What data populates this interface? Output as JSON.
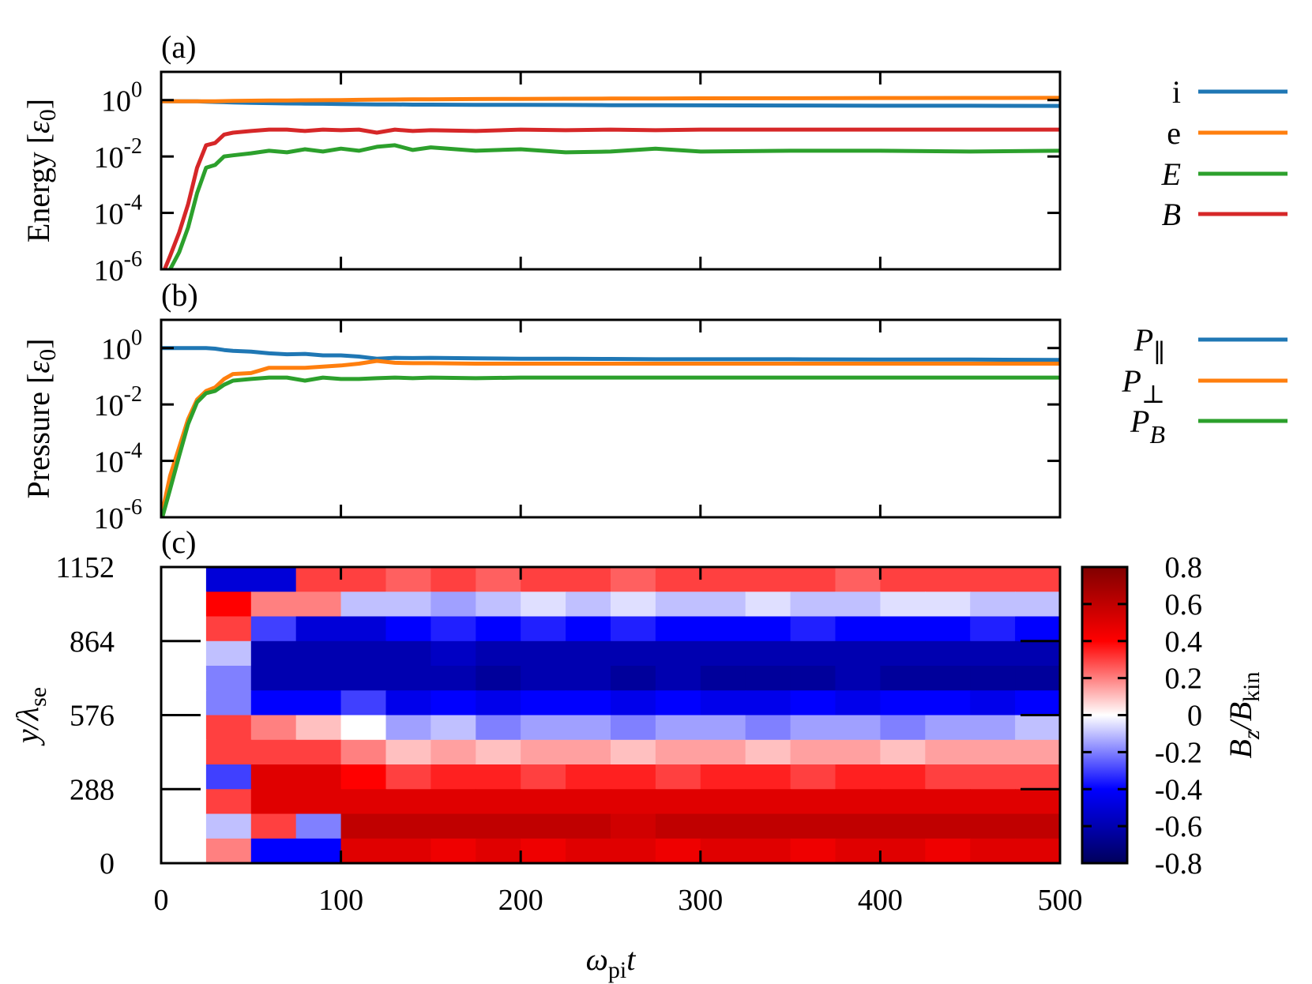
{
  "chart_data": [
    {
      "panel": "(a)",
      "type": "line",
      "ylabel": "Energy [ε0]",
      "yscale": "log",
      "ylim": [
        1e-06,
        10
      ],
      "xlim": [
        0,
        500
      ],
      "ytick_labels": [
        {
          "base": "10",
          "exp": "0",
          "value": 1
        },
        {
          "base": "10",
          "exp": "-2",
          "value": 0.01
        },
        {
          "base": "10",
          "exp": "-4",
          "value": 0.0001
        },
        {
          "base": "10",
          "exp": "-6",
          "value": 1e-06
        }
      ],
      "legend_position": "right",
      "x": [
        0,
        5,
        10,
        15,
        20,
        25,
        30,
        35,
        40,
        50,
        60,
        70,
        80,
        90,
        100,
        110,
        120,
        130,
        140,
        150,
        175,
        200,
        225,
        250,
        275,
        300,
        350,
        400,
        450,
        500
      ],
      "series": [
        {
          "name": "i",
          "color": "#1f77b4",
          "values": [
            0.9,
            0.9,
            0.9,
            0.9,
            0.9,
            0.88,
            0.86,
            0.84,
            0.82,
            0.8,
            0.78,
            0.76,
            0.75,
            0.74,
            0.72,
            0.71,
            0.7,
            0.7,
            0.69,
            0.69,
            0.68,
            0.68,
            0.67,
            0.66,
            0.66,
            0.65,
            0.64,
            0.63,
            0.63,
            0.62
          ]
        },
        {
          "name": "e",
          "color": "#ff7f0e",
          "values": [
            0.9,
            0.9,
            0.9,
            0.9,
            0.9,
            0.9,
            0.91,
            0.92,
            0.93,
            0.95,
            0.96,
            0.97,
            0.98,
            0.99,
            1.0,
            1.02,
            1.04,
            1.05,
            1.06,
            1.07,
            1.09,
            1.1,
            1.12,
            1.13,
            1.14,
            1.15,
            1.16,
            1.18,
            1.19,
            1.2
          ]
        },
        {
          "name": "E",
          "color": "#2ca02c",
          "values": [
            3e-07,
            1e-06,
            4e-06,
            3e-05,
            0.0005,
            0.004,
            0.005,
            0.01,
            0.011,
            0.013,
            0.016,
            0.014,
            0.018,
            0.015,
            0.019,
            0.016,
            0.022,
            0.025,
            0.017,
            0.021,
            0.016,
            0.018,
            0.014,
            0.015,
            0.019,
            0.015,
            0.016,
            0.016,
            0.015,
            0.016
          ]
        },
        {
          "name": "B",
          "color": "#d62728",
          "values": [
            5e-07,
            3e-06,
            2e-05,
            0.0002,
            0.004,
            0.025,
            0.03,
            0.06,
            0.07,
            0.08,
            0.09,
            0.09,
            0.08,
            0.09,
            0.085,
            0.09,
            0.07,
            0.09,
            0.08,
            0.085,
            0.08,
            0.09,
            0.085,
            0.09,
            0.085,
            0.09,
            0.09,
            0.09,
            0.09,
            0.09
          ]
        }
      ]
    },
    {
      "panel": "(b)",
      "type": "line",
      "ylabel": "Pressure [ε0]",
      "yscale": "log",
      "ylim": [
        1e-06,
        10
      ],
      "xlim": [
        0,
        500
      ],
      "ytick_labels": [
        {
          "base": "10",
          "exp": "0",
          "value": 1
        },
        {
          "base": "10",
          "exp": "-2",
          "value": 0.01
        },
        {
          "base": "10",
          "exp": "-4",
          "value": 0.0001
        },
        {
          "base": "10",
          "exp": "-6",
          "value": 1e-06
        }
      ],
      "legend_position": "right",
      "x": [
        0,
        5,
        10,
        15,
        20,
        25,
        30,
        35,
        40,
        50,
        60,
        70,
        80,
        90,
        100,
        110,
        120,
        130,
        140,
        150,
        175,
        200,
        225,
        250,
        275,
        300,
        350,
        400,
        450,
        500
      ],
      "series": [
        {
          "name": "P",
          "sub": "∥",
          "color": "#1f77b4",
          "values": [
            1,
            1,
            1,
            1,
            1,
            1,
            0.95,
            0.85,
            0.8,
            0.75,
            0.65,
            0.6,
            0.62,
            0.55,
            0.55,
            0.5,
            0.42,
            0.45,
            0.44,
            0.45,
            0.43,
            0.42,
            0.42,
            0.41,
            0.4,
            0.4,
            0.4,
            0.39,
            0.39,
            0.38
          ]
        },
        {
          "name": "P",
          "sub": "⊥",
          "color": "#ff7f0e",
          "values": [
            1e-06,
            3e-05,
            0.0003,
            0.003,
            0.015,
            0.03,
            0.04,
            0.08,
            0.12,
            0.13,
            0.2,
            0.2,
            0.2,
            0.22,
            0.24,
            0.28,
            0.35,
            0.3,
            0.29,
            0.29,
            0.28,
            0.28,
            0.28,
            0.28,
            0.28,
            0.28,
            0.28,
            0.28,
            0.28,
            0.28
          ]
        },
        {
          "name": "P",
          "sub": "B",
          "color": "#2ca02c",
          "values": [
            7e-07,
            1e-05,
            0.00015,
            0.002,
            0.012,
            0.025,
            0.03,
            0.05,
            0.07,
            0.08,
            0.09,
            0.09,
            0.07,
            0.09,
            0.08,
            0.08,
            0.085,
            0.09,
            0.085,
            0.09,
            0.085,
            0.09,
            0.09,
            0.09,
            0.09,
            0.09,
            0.09,
            0.09,
            0.09,
            0.09
          ]
        }
      ]
    },
    {
      "panel": "(c)",
      "type": "heatmap",
      "xlabel": "ωpit",
      "xlabel_parts": {
        "main": "ω",
        "sub": "pi",
        "tail": "t"
      },
      "ylabel_parts": {
        "main": "y/λ",
        "sub": "se"
      },
      "xlim": [
        0,
        500
      ],
      "ylim": [
        0,
        1152
      ],
      "xtick_labels": [
        "0",
        "100",
        "200",
        "300",
        "400",
        "500"
      ],
      "ytick_labels": [
        "1152",
        "864",
        "576",
        "288",
        "0"
      ],
      "colorbar": {
        "label_parts": {
          "a": "B",
          "asub": "z",
          "b": "/B",
          "bsub": "kin"
        },
        "range": [
          -0.8,
          0.8
        ],
        "tick_labels": [
          "0.8",
          "0.6",
          "0.4",
          "0.2",
          "0",
          "-0.2",
          "-0.4",
          "-0.6",
          "-0.8"
        ],
        "colors": [
          "#00005a",
          "#0000b0",
          "#0000ff",
          "#8080ff",
          "#ffffff",
          "#ff8080",
          "#ff0000",
          "#c00000",
          "#800000"
        ]
      },
      "x_centers": [
        12.5,
        37.5,
        62.5,
        87.5,
        112.5,
        137.5,
        162.5,
        187.5,
        212.5,
        237.5,
        262.5,
        287.5,
        312.5,
        337.5,
        362.5,
        387.5,
        412.5,
        437.5,
        462.5,
        487.5
      ],
      "y_centers_top_to_bottom": [
        1104,
        1008,
        912,
        816,
        720,
        624,
        528,
        432,
        336,
        240,
        144,
        48
      ],
      "values": [
        [
          0.0,
          -0.5,
          -0.5,
          0.3,
          0.3,
          0.25,
          0.3,
          0.25,
          0.3,
          0.3,
          0.25,
          0.3,
          0.3,
          0.3,
          0.3,
          0.25,
          0.3,
          0.3,
          0.3,
          0.3
        ],
        [
          0.0,
          0.4,
          0.2,
          0.2,
          -0.1,
          -0.1,
          -0.15,
          -0.1,
          -0.05,
          -0.1,
          -0.05,
          -0.1,
          -0.1,
          -0.05,
          -0.1,
          -0.1,
          -0.05,
          -0.05,
          -0.1,
          -0.1
        ],
        [
          0.0,
          0.3,
          -0.3,
          -0.5,
          -0.5,
          -0.4,
          -0.35,
          -0.4,
          -0.35,
          -0.4,
          -0.35,
          -0.4,
          -0.4,
          -0.4,
          -0.35,
          -0.4,
          -0.4,
          -0.4,
          -0.35,
          -0.4
        ],
        [
          0.0,
          -0.1,
          -0.6,
          -0.6,
          -0.6,
          -0.6,
          -0.55,
          -0.6,
          -0.6,
          -0.6,
          -0.6,
          -0.6,
          -0.6,
          -0.6,
          -0.6,
          -0.6,
          -0.6,
          -0.6,
          -0.6,
          -0.6
        ],
        [
          0.0,
          -0.2,
          -0.6,
          -0.6,
          -0.6,
          -0.6,
          -0.6,
          -0.65,
          -0.6,
          -0.6,
          -0.65,
          -0.6,
          -0.65,
          -0.65,
          -0.65,
          -0.6,
          -0.65,
          -0.65,
          -0.65,
          -0.65
        ],
        [
          0.0,
          -0.2,
          -0.4,
          -0.4,
          -0.3,
          -0.45,
          -0.4,
          -0.45,
          -0.4,
          -0.4,
          -0.45,
          -0.4,
          -0.45,
          -0.45,
          -0.4,
          -0.45,
          -0.4,
          -0.4,
          -0.45,
          -0.4
        ],
        [
          0.0,
          0.3,
          0.2,
          0.1,
          0.0,
          -0.15,
          -0.1,
          -0.2,
          -0.15,
          -0.15,
          -0.2,
          -0.15,
          -0.15,
          -0.2,
          -0.15,
          -0.15,
          -0.2,
          -0.15,
          -0.15,
          -0.1
        ],
        [
          0.0,
          0.3,
          0.3,
          0.3,
          0.2,
          0.1,
          0.15,
          0.1,
          0.15,
          0.15,
          0.1,
          0.15,
          0.15,
          0.1,
          0.15,
          0.15,
          0.1,
          0.15,
          0.15,
          0.15
        ],
        [
          0.0,
          -0.3,
          0.5,
          0.5,
          0.4,
          0.3,
          0.35,
          0.35,
          0.3,
          0.35,
          0.35,
          0.3,
          0.35,
          0.35,
          0.3,
          0.35,
          0.35,
          0.3,
          0.3,
          0.3
        ],
        [
          0.0,
          0.3,
          0.5,
          0.5,
          0.5,
          0.5,
          0.5,
          0.5,
          0.5,
          0.5,
          0.5,
          0.5,
          0.5,
          0.5,
          0.5,
          0.5,
          0.5,
          0.5,
          0.5,
          0.5
        ],
        [
          0.0,
          -0.1,
          0.3,
          -0.2,
          0.6,
          0.6,
          0.6,
          0.6,
          0.6,
          0.6,
          0.55,
          0.6,
          0.6,
          0.6,
          0.6,
          0.6,
          0.6,
          0.6,
          0.6,
          0.6
        ],
        [
          0.0,
          0.2,
          -0.4,
          -0.4,
          0.5,
          0.5,
          0.45,
          0.5,
          0.45,
          0.5,
          0.5,
          0.45,
          0.5,
          0.5,
          0.45,
          0.5,
          0.5,
          0.45,
          0.5,
          0.5
        ]
      ]
    }
  ]
}
